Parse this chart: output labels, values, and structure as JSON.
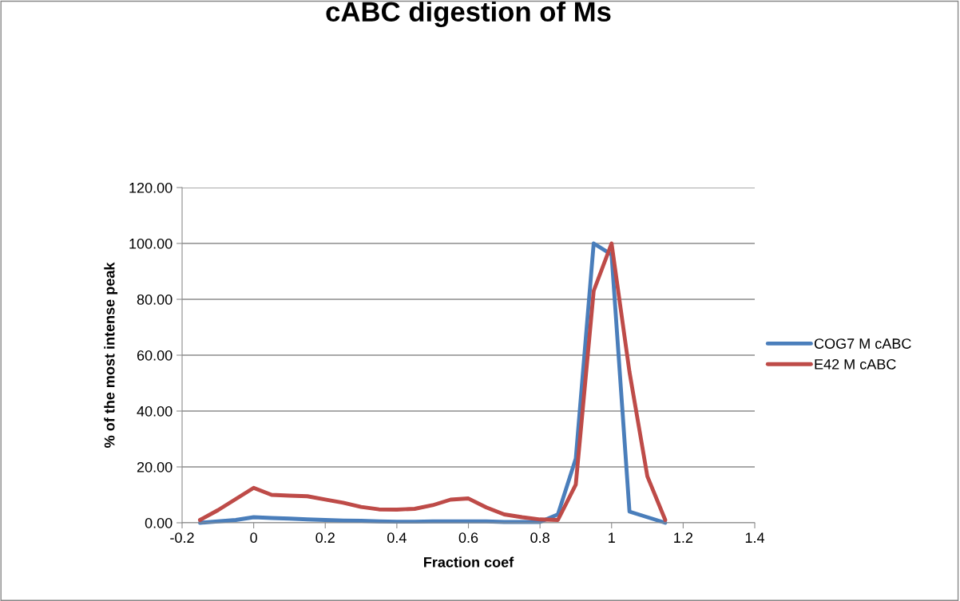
{
  "chart_data": {
    "type": "line",
    "title": "cABC digestion of Ms",
    "xlabel": "Fraction coef",
    "ylabel": "% of the most intense peak",
    "x": [
      -0.15,
      -0.1,
      -0.05,
      0,
      0.05,
      0.1,
      0.15,
      0.2,
      0.25,
      0.3,
      0.35,
      0.4,
      0.45,
      0.5,
      0.55,
      0.6,
      0.65,
      0.7,
      0.75,
      0.8,
      0.85,
      0.9,
      0.95,
      1.0,
      1.05,
      1.1,
      1.15
    ],
    "series": [
      {
        "name": "COG7 M cABC",
        "color": "#4a7ebb",
        "values": [
          0,
          0.5,
          1,
          2,
          1.7,
          1.5,
          1.2,
          1,
          0.8,
          0.7,
          0.5,
          0.4,
          0.4,
          0.5,
          0.5,
          0.5,
          0.5,
          0.3,
          0.3,
          0.3,
          3,
          23,
          100,
          96,
          4,
          2,
          0
        ]
      },
      {
        "name": "E42 M cABC",
        "color": "#be4b48",
        "values": [
          1,
          4.5,
          8.5,
          12.5,
          10,
          9.7,
          9.5,
          8.3,
          7.2,
          5.7,
          4.8,
          4.7,
          5,
          6.3,
          8.3,
          8.7,
          5.5,
          3,
          2,
          1.2,
          1,
          13.7,
          83,
          100,
          54,
          16.6,
          1
        ]
      }
    ],
    "xlim": [
      -0.2,
      1.4
    ],
    "xticks": [
      -0.2,
      0,
      0.2,
      0.4,
      0.6,
      0.8,
      1,
      1.2,
      1.4
    ],
    "ylim": [
      0,
      120
    ],
    "yticks": [
      {
        "value": 0,
        "label": "0.00"
      },
      {
        "value": 20,
        "label": "20.00"
      },
      {
        "value": 40,
        "label": "40.00"
      },
      {
        "value": 60,
        "label": "60.00"
      },
      {
        "value": 80,
        "label": "80.00"
      },
      {
        "value": 100,
        "label": "100.00"
      },
      {
        "value": 120,
        "label": "120.00"
      }
    ],
    "grid": "y",
    "legend": "right",
    "marker": "none",
    "line_style": "solid"
  }
}
